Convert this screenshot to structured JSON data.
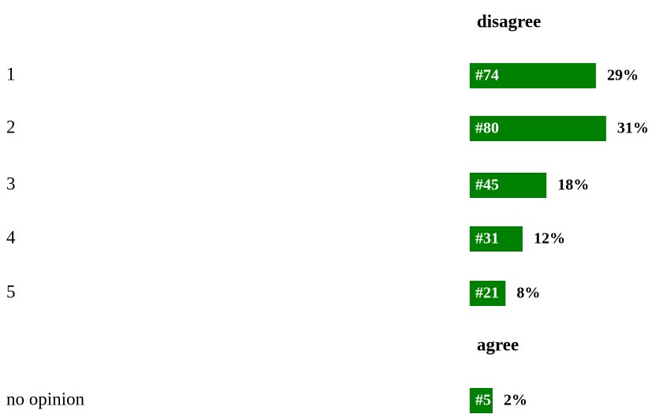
{
  "chart_data": {
    "type": "bar",
    "orientation": "horizontal",
    "scale_labels": {
      "low": "disagree",
      "high": "agree"
    },
    "categories": [
      "1",
      "2",
      "3",
      "4",
      "5",
      "no opinion"
    ],
    "values": [
      74,
      80,
      45,
      31,
      21,
      5
    ],
    "value_labels": [
      "#74",
      "#80",
      "#45",
      "#31",
      "#21",
      "#5"
    ],
    "percents": [
      29,
      31,
      18,
      12,
      8,
      2
    ],
    "percent_labels": [
      "29%",
      "31%",
      "18%",
      "12%",
      "8%",
      "2%"
    ],
    "color": "#008000"
  }
}
